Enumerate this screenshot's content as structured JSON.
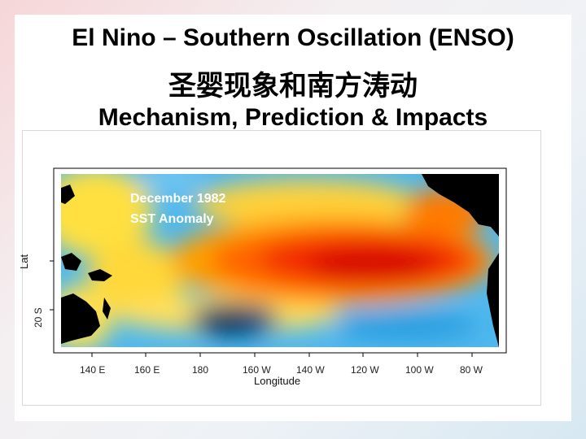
{
  "title": {
    "line1": "El Nino – Southern Oscillation (ENSO)",
    "line2": "圣婴现象和南方涛动",
    "line3": "Mechanism, Prediction & Impacts"
  },
  "figure": {
    "annotation_line1": "December 1982",
    "annotation_line2": "SST Anomaly",
    "x_axis_title": "Longitude",
    "y_axis_title": "Lat",
    "x_ticks": [
      "140 E",
      "160 E",
      "180",
      "160 W",
      "140 W",
      "120 W",
      "100 W",
      "80 W"
    ],
    "y_ticks": [
      "20 S"
    ],
    "colors": {
      "warm_core": "#e00000",
      "warm": "#ff5a00",
      "mild": "#ffd000",
      "cool": "#2aa8e8",
      "cold": "#00305a",
      "land": "#000000"
    }
  }
}
